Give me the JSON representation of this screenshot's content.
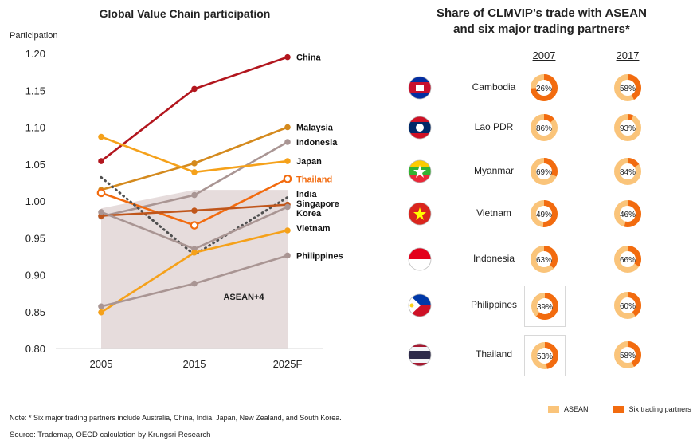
{
  "left_chart": {
    "title": "Global Value Chain participation",
    "ylabel": "Participation",
    "shade_label": "ASEAN+4"
  },
  "right_chart": {
    "title_line1": "Share of CLMVIP’s trade with ASEAN",
    "title_line2": "and six major trading partners*",
    "year1": "2007",
    "year2": "2017",
    "legend_asean": "ASEAN",
    "legend_six": "Six trading partners"
  },
  "note": "Note: * Six major trading partners include Australia, China, India, Japan, New Zealand, and South Korea.",
  "source": "Source: Trademap, OECD calculation by Krungsri Research",
  "colors": {
    "asean": "#FAC47A",
    "six_partners": "#F26B0F",
    "shade": "#E0D3D3"
  },
  "chart_data": [
    {
      "type": "line",
      "title": "Global Value Chain participation",
      "ylabel": "Participation",
      "categories": [
        "2005",
        "2015",
        "2025F"
      ],
      "ylim": [
        0.8,
        1.2
      ],
      "yticks": [
        "0.80",
        "0.85",
        "0.90",
        "0.95",
        "1.00",
        "1.05",
        "1.10",
        "1.15",
        "1.20"
      ],
      "grid": false,
      "series": [
        {
          "name": "China",
          "values": [
            1.054,
            1.152,
            1.195
          ],
          "color": "#B2161E"
        },
        {
          "name": "Malaysia",
          "values": [
            1.015,
            1.051,
            1.1
          ],
          "color": "#D48A1E"
        },
        {
          "name": "Indonesia",
          "values": [
            0.979,
            1.008,
            1.08
          ],
          "color": "#A99593"
        },
        {
          "name": "Japan",
          "values": [
            1.087,
            1.039,
            1.054
          ],
          "color": "#F5A11A"
        },
        {
          "name": "Thailand",
          "values": [
            1.011,
            0.967,
            1.03
          ],
          "color": "#F26B0F",
          "hollow_markers": true
        },
        {
          "name": "India",
          "values": [
            1.032,
            0.927,
            1.005
          ],
          "color": "#505050",
          "dotted": true
        },
        {
          "name": "Singapore",
          "values": [
            0.98,
            0.987,
            0.995
          ],
          "color": "#C0561B"
        },
        {
          "name": "Korea",
          "values": [
            0.985,
            0.935,
            0.992
          ],
          "color": "#A99593"
        },
        {
          "name": "Vietnam",
          "values": [
            0.849,
            0.93,
            0.96
          ],
          "color": "#F5A11A"
        },
        {
          "name": "Philippines",
          "values": [
            0.857,
            0.888,
            0.926
          ],
          "color": "#A99593"
        }
      ],
      "shaded_area": {
        "name": "ASEAN+4",
        "values": [
          0.99,
          1.015,
          1.015
        ]
      }
    },
    {
      "type": "pie",
      "title": "Share of CLMVIP’s trade with ASEAN and six major trading partners*",
      "series_names": [
        "ASEAN",
        "Six trading partners"
      ],
      "years": [
        "2007",
        "2017"
      ],
      "countries": [
        {
          "name": "Cambodia",
          "asean_2007": 26,
          "asean_2017": 58
        },
        {
          "name": "Lao PDR",
          "asean_2007": 86,
          "asean_2017": 93
        },
        {
          "name": "Myanmar",
          "asean_2007": 69,
          "asean_2017": 84
        },
        {
          "name": "Vietnam",
          "asean_2007": 49,
          "asean_2017": 46
        },
        {
          "name": "Indonesia",
          "asean_2007": 63,
          "asean_2017": 66
        },
        {
          "name": "Philippines",
          "asean_2007": 39,
          "asean_2017": 60
        },
        {
          "name": "Thailand",
          "asean_2007": 53,
          "asean_2017": 58
        }
      ]
    }
  ]
}
